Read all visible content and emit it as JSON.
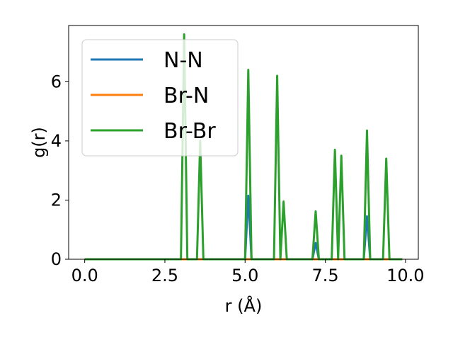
{
  "chart_data": {
    "type": "line",
    "xlabel": "r (Å)",
    "ylabel": "g(r)",
    "xlim": [
      -0.5,
      10.4
    ],
    "ylim": [
      0,
      7.9
    ],
    "xticks": [
      "0.0",
      "2.5",
      "5.0",
      "7.5",
      "10.0"
    ],
    "xtick_values": [
      0,
      2.5,
      5,
      7.5,
      10
    ],
    "yticks": [
      "0",
      "2",
      "4",
      "6"
    ],
    "ytick_values": [
      0,
      2,
      4,
      6
    ],
    "grid": false,
    "legend_position": "top-left",
    "series": [
      {
        "name": "N-N",
        "color": "#1f77b4",
        "points": [
          [
            0,
            0
          ],
          [
            5.0,
            0
          ],
          [
            5.1,
            2.15
          ],
          [
            5.2,
            0
          ],
          [
            7.1,
            0
          ],
          [
            7.2,
            0.55
          ],
          [
            7.3,
            0
          ],
          [
            8.7,
            0
          ],
          [
            8.8,
            1.45
          ],
          [
            8.9,
            0
          ],
          [
            9.9,
            0
          ]
        ]
      },
      {
        "name": "Br-N",
        "color": "#ff7f0e",
        "points": [
          [
            0,
            0
          ],
          [
            9.9,
            0
          ]
        ]
      },
      {
        "name": "Br-Br",
        "color": "#2ca02c",
        "points": [
          [
            0,
            0
          ],
          [
            3.0,
            0
          ],
          [
            3.1,
            7.6
          ],
          [
            3.2,
            0
          ],
          [
            3.5,
            0
          ],
          [
            3.6,
            4.0
          ],
          [
            3.7,
            0
          ],
          [
            5.0,
            0
          ],
          [
            5.1,
            6.4
          ],
          [
            5.2,
            0
          ],
          [
            5.9,
            0
          ],
          [
            6.0,
            6.2
          ],
          [
            6.1,
            0
          ],
          [
            6.2,
            1.95
          ],
          [
            6.3,
            0
          ],
          [
            7.1,
            0
          ],
          [
            7.2,
            1.62
          ],
          [
            7.3,
            0
          ],
          [
            7.7,
            0
          ],
          [
            7.8,
            3.7
          ],
          [
            7.9,
            0
          ],
          [
            8.0,
            3.5
          ],
          [
            8.1,
            0
          ],
          [
            8.7,
            0
          ],
          [
            8.8,
            4.35
          ],
          [
            8.9,
            0
          ],
          [
            9.3,
            0
          ],
          [
            9.4,
            3.4
          ],
          [
            9.5,
            0
          ],
          [
            9.9,
            0
          ]
        ]
      }
    ]
  }
}
